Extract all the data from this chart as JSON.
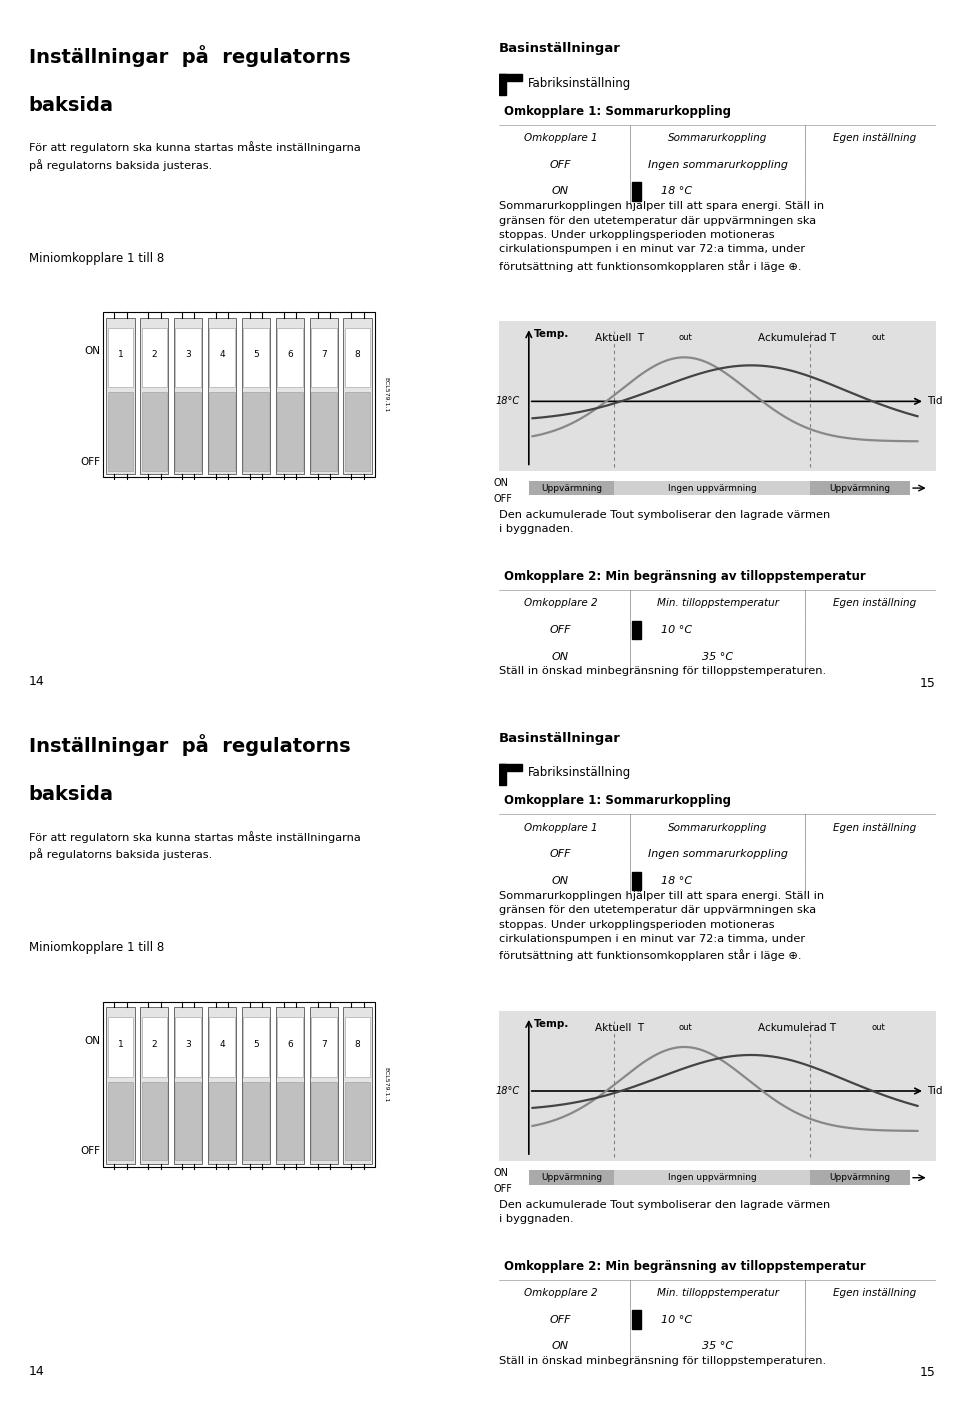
{
  "bg_color": "#ffffff",
  "left_col_title_line1": "Inställningar  på  regulatorns",
  "left_col_title_line2": "baksida",
  "left_col_body": "För att regulatorn ska kunna startas måste inställningarna\npå regulatorns baksida justeras.",
  "mini_label": "Miniomkopplare 1 till 8",
  "ecl_label": "ECL579.1.1",
  "right_title": "Basinställningar",
  "factory_label": "Fabriksinställning",
  "table1_header": "Omkopplare 1: Sommarurkoppling",
  "table1_cols": [
    "Omkopplare 1",
    "Sommarurkoppling",
    "Egen inställning"
  ],
  "table1_row1": [
    "OFF",
    "Ingen sommarurkoppling",
    ""
  ],
  "table1_row2": [
    "ON",
    "18 °C",
    ""
  ],
  "body_text1": "Sommarurkopplingen hjälper till att spara energi. Ställ in\ngränsen för den utetemperatur där uppvärmningen ska\nstoppas. Under urkopplingsperioden motioneras\ncirkulationspumpen i en minut var 72:a timma, under\nförutsättning att funktionsomkopplaren står i läge ⊕.",
  "chart_temp": "Temp.",
  "chart_aktuell": "Aktuell  T",
  "chart_aktuell_sub": "out",
  "chart_ackum": "Ackumulerad T",
  "chart_ackum_sub": "out",
  "chart_18c": "18°C",
  "chart_tid": "Tid",
  "chart_on": "ON",
  "chart_off": "OFF",
  "chart_upp1": "Uppvärmning",
  "chart_ingen": "Ingen uppvärmning",
  "chart_upp2": "Uppvärmning",
  "desc_text": "Den ackumulerade Tout symboliserar den lagrade värmen\ni byggnaden.",
  "table2_header": "Omkopplare 2: Min begränsning av tilloppstemperatur",
  "table2_cols": [
    "Omkopplare 2",
    "Min. tilloppstemperatur",
    "Egen inställning"
  ],
  "table2_row1": [
    "OFF",
    "10 °C",
    ""
  ],
  "table2_row2": [
    "ON",
    "35 °C",
    ""
  ],
  "footer_text": "Ställ in önskad minbegränsning för tilloppstemperaturen.",
  "page_left": "14",
  "page_right": "15",
  "header_gray": "#c0c0c0",
  "chart_bg": "#e0e0e0",
  "bar_dark": "#aaaaaa",
  "bar_light": "#d0d0d0"
}
